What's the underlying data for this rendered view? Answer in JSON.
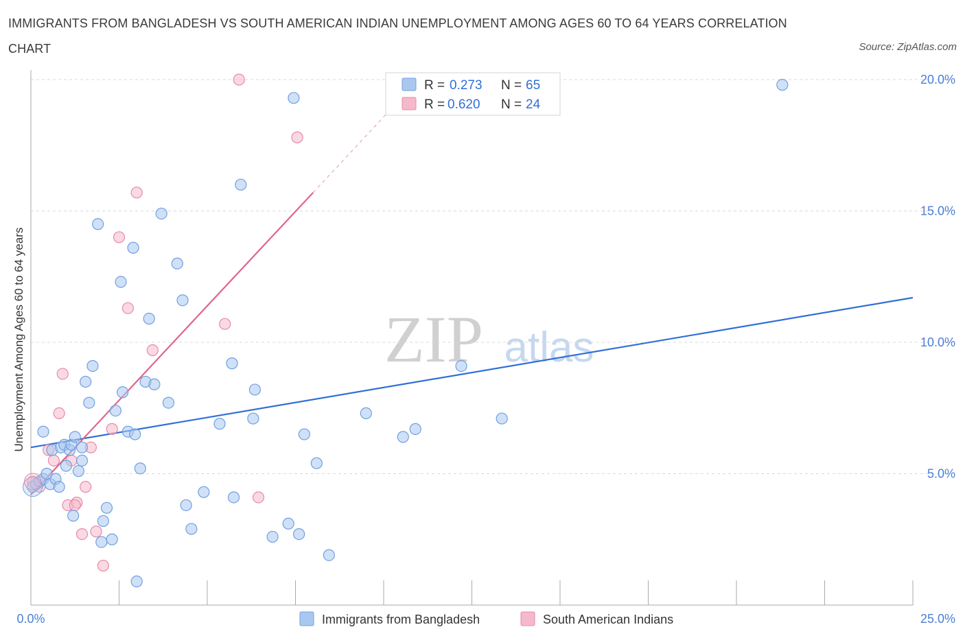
{
  "header": {
    "title": "IMMIGRANTS FROM BANGLADESH VS SOUTH AMERICAN INDIAN UNEMPLOYMENT AMONG AGES 60 TO 64 YEARS CORRELATION CHART",
    "source": "Source: ZipAtlas.com"
  },
  "watermark": {
    "zip": "ZIP",
    "atlas": "atlas"
  },
  "colors": {
    "blue_fill": "#a9c8f0",
    "blue_stroke": "#6f9fe0",
    "blue_line": "#2f6fd6",
    "pink_fill": "#f5b9cb",
    "pink_stroke": "#e68aa8",
    "pink_line": "#e0648c",
    "grid": "#d9d9d9",
    "tick_text": "#4a7fd4"
  },
  "legend": {
    "rows": [
      {
        "r_label": "R =",
        "r_value": "0.273",
        "n_label": "N =",
        "n_value": "65"
      },
      {
        "r_label": "R =",
        "r_value": "0.620",
        "n_label": "N =",
        "n_value": "24"
      }
    ]
  },
  "chart_data": {
    "type": "scatter",
    "title": "IMMIGRANTS FROM BANGLADESH VS SOUTH AMERICAN INDIAN UNEMPLOYMENT AMONG AGES 60 TO 64 YEARS CORRELATION CHART",
    "xlabel": "",
    "ylabel": "Unemployment Among Ages 60 to 64 years",
    "xlim": [
      0,
      25
    ],
    "ylim": [
      0,
      20.5
    ],
    "x_tick_labels": [
      "0.0%",
      "25.0%"
    ],
    "y_ticks": [
      5,
      10,
      15,
      20
    ],
    "y_tick_labels": [
      "5.0%",
      "10.0%",
      "15.0%",
      "20.0%"
    ],
    "grid": true,
    "legend_position": "top-center",
    "series": [
      {
        "name": "Immigrants from Bangladesh",
        "color": "#a9c8f0",
        "trend": {
          "x0": 0,
          "y0": 6.0,
          "x1": 25,
          "y1": 11.7
        },
        "points": [
          [
            0.05,
            4.5
          ],
          [
            0.15,
            4.6
          ],
          [
            0.25,
            4.7
          ],
          [
            0.35,
            4.8
          ],
          [
            0.45,
            5.0
          ],
          [
            0.55,
            4.6
          ],
          [
            0.6,
            5.9
          ],
          [
            0.7,
            4.8
          ],
          [
            0.85,
            6.0
          ],
          [
            0.95,
            6.1
          ],
          [
            0.8,
            4.5
          ],
          [
            1.0,
            5.3
          ],
          [
            1.1,
            5.9
          ],
          [
            1.15,
            6.1
          ],
          [
            1.25,
            6.4
          ],
          [
            1.35,
            5.1
          ],
          [
            1.45,
            5.5
          ],
          [
            1.55,
            8.5
          ],
          [
            1.65,
            7.7
          ],
          [
            1.75,
            9.1
          ],
          [
            1.9,
            14.5
          ],
          [
            2.05,
            3.2
          ],
          [
            2.15,
            3.7
          ],
          [
            2.3,
            2.5
          ],
          [
            2.4,
            7.4
          ],
          [
            2.55,
            12.3
          ],
          [
            2.6,
            8.1
          ],
          [
            2.75,
            6.6
          ],
          [
            2.9,
            13.6
          ],
          [
            2.95,
            6.5
          ],
          [
            3.1,
            5.2
          ],
          [
            3.25,
            8.5
          ],
          [
            3.35,
            10.9
          ],
          [
            3.5,
            8.4
          ],
          [
            3.7,
            14.9
          ],
          [
            3.9,
            7.7
          ],
          [
            4.15,
            13.0
          ],
          [
            4.3,
            11.6
          ],
          [
            4.4,
            3.8
          ],
          [
            4.55,
            2.9
          ],
          [
            4.9,
            4.3
          ],
          [
            5.35,
            6.9
          ],
          [
            5.7,
            9.2
          ],
          [
            5.75,
            4.1
          ],
          [
            5.95,
            16.0
          ],
          [
            6.3,
            7.1
          ],
          [
            6.35,
            8.2
          ],
          [
            6.85,
            2.6
          ],
          [
            7.3,
            3.1
          ],
          [
            7.45,
            19.3
          ],
          [
            7.6,
            2.7
          ],
          [
            7.75,
            6.5
          ],
          [
            8.1,
            5.4
          ],
          [
            8.45,
            1.9
          ],
          [
            9.5,
            7.3
          ],
          [
            10.55,
            6.4
          ],
          [
            10.9,
            6.7
          ],
          [
            12.2,
            9.1
          ],
          [
            13.35,
            7.1
          ],
          [
            21.3,
            19.8
          ],
          [
            3.0,
            0.9
          ],
          [
            1.2,
            3.4
          ],
          [
            0.35,
            6.6
          ],
          [
            1.45,
            6.0
          ],
          [
            2.0,
            2.4
          ]
        ]
      },
      {
        "name": "South American Indians",
        "color": "#f5b9cb",
        "trend": {
          "x0": 0,
          "y0": 4.2,
          "x1": 8.0,
          "y1": 15.7
        },
        "trend_dashed": {
          "x0": 8.0,
          "y0": 15.7,
          "x1": 10.5,
          "y1": 19.3
        },
        "points": [
          [
            0.05,
            4.7
          ],
          [
            0.25,
            4.5
          ],
          [
            0.5,
            5.9
          ],
          [
            0.65,
            5.5
          ],
          [
            0.8,
            7.3
          ],
          [
            0.9,
            8.8
          ],
          [
            1.05,
            3.8
          ],
          [
            1.15,
            5.5
          ],
          [
            1.3,
            3.9
          ],
          [
            1.45,
            2.7
          ],
          [
            1.55,
            4.5
          ],
          [
            1.7,
            6.0
          ],
          [
            1.85,
            2.8
          ],
          [
            2.05,
            1.5
          ],
          [
            2.3,
            6.7
          ],
          [
            2.5,
            14.0
          ],
          [
            2.75,
            11.3
          ],
          [
            3.0,
            15.7
          ],
          [
            3.45,
            9.7
          ],
          [
            5.5,
            10.7
          ],
          [
            5.9,
            20.0
          ],
          [
            6.45,
            4.1
          ],
          [
            7.55,
            17.8
          ],
          [
            1.25,
            3.8
          ]
        ]
      }
    ]
  },
  "bottom_legend": {
    "items": [
      {
        "label": "Immigrants from Bangladesh"
      },
      {
        "label": "South American Indians"
      }
    ]
  }
}
